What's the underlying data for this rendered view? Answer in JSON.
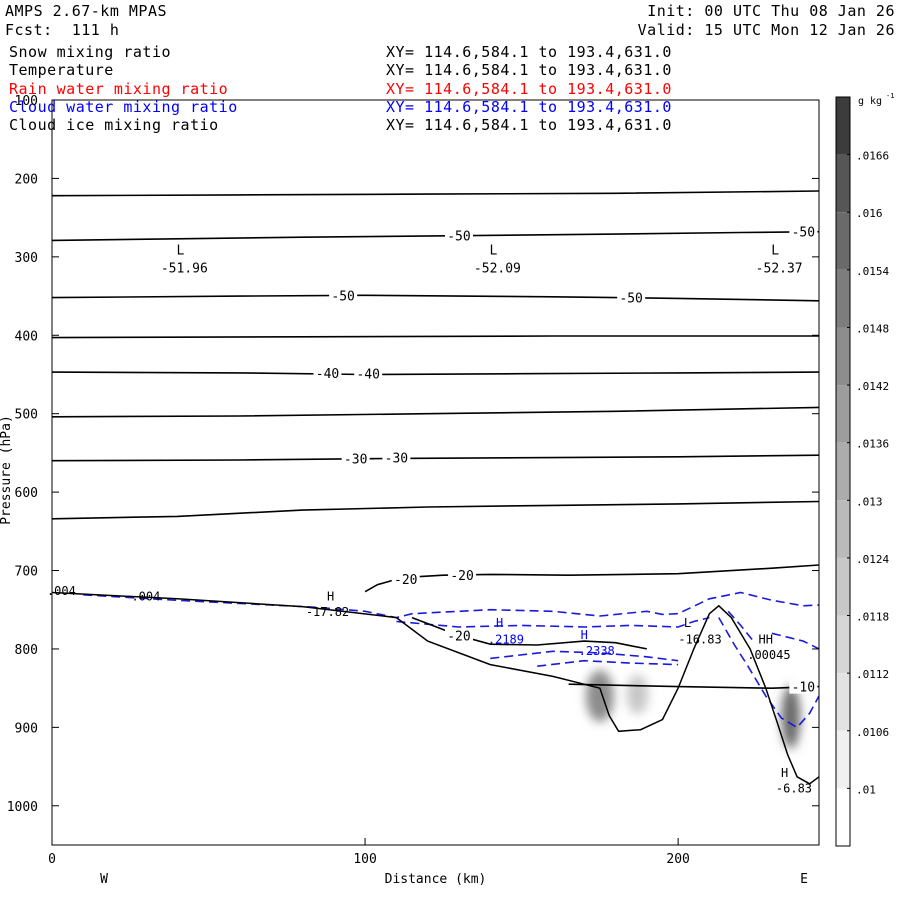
{
  "header": {
    "model": "AMPS 2.67-km MPAS",
    "forecast": "Fcst:  111 h",
    "init": "Init: 00 UTC Thu 08 Jan 26",
    "valid": "Valid: 15 UTC Mon 12 Jan 26"
  },
  "fields": [
    {
      "name": "Snow mixing ratio",
      "xy": "XY= 114.6,584.1 to 193.4,631.0",
      "color": "#000000"
    },
    {
      "name": "Temperature",
      "xy": "XY= 114.6,584.1 to 193.4,631.0",
      "color": "#000000"
    },
    {
      "name": "Rain water mixing ratio",
      "xy": "XY= 114.6,584.1 to 193.4,631.0",
      "color": "#ff0000"
    },
    {
      "name": "Cloud water mixing ratio",
      "xy": "XY= 114.6,584.1 to 193.4,631.0",
      "color": "#0000ff"
    },
    {
      "name": "Cloud ice mixing ratio",
      "xy": "XY= 114.6,584.1 to 193.4,631.0",
      "color": "#000000"
    }
  ],
  "chart_data": {
    "type": "cross-section contour",
    "xlabel": "Distance (km)",
    "ylabel": "Pressure (hPa)",
    "xlim": [
      0,
      245
    ],
    "ylim": [
      1050,
      100
    ],
    "x_ticks": [
      0,
      100,
      200
    ],
    "y_ticks": [
      100,
      200,
      300,
      400,
      500,
      600,
      700,
      800,
      900,
      1000
    ],
    "west_label": "W",
    "east_label": "E",
    "x_axis_units": "km",
    "temperature_contours": [
      {
        "label": "",
        "points": [
          [
            0,
            222
          ],
          [
            60,
            221
          ],
          [
            120,
            220
          ],
          [
            180,
            219
          ],
          [
            245,
            216
          ]
        ]
      },
      {
        "label": "-50",
        "points": [
          [
            0,
            279
          ],
          [
            40,
            277
          ],
          [
            80,
            275
          ],
          [
            130,
            273
          ],
          [
            180,
            271
          ],
          [
            220,
            269
          ],
          [
            245,
            268
          ]
        ]
      },
      {
        "label": "-50",
        "points": [
          [
            0,
            352
          ],
          [
            60,
            350
          ],
          [
            100,
            349
          ],
          [
            160,
            351
          ],
          [
            200,
            353
          ],
          [
            245,
            356
          ]
        ]
      },
      {
        "label": "",
        "points": [
          [
            0,
            403
          ],
          [
            80,
            402
          ],
          [
            160,
            401
          ],
          [
            245,
            401
          ]
        ]
      },
      {
        "label": "-40",
        "points": [
          [
            0,
            447
          ],
          [
            60,
            448
          ],
          [
            100,
            450
          ],
          [
            150,
            449
          ],
          [
            200,
            448
          ],
          [
            245,
            447
          ]
        ]
      },
      {
        "label": "",
        "points": [
          [
            0,
            504
          ],
          [
            60,
            503
          ],
          [
            120,
            500
          ],
          [
            180,
            497
          ],
          [
            245,
            492
          ]
        ]
      },
      {
        "label": "-30",
        "points": [
          [
            0,
            560
          ],
          [
            60,
            559
          ],
          [
            110,
            557
          ],
          [
            160,
            556
          ],
          [
            200,
            555
          ],
          [
            245,
            553
          ]
        ]
      },
      {
        "label": "",
        "points": [
          [
            0,
            634
          ],
          [
            40,
            631
          ],
          [
            80,
            623
          ],
          [
            120,
            619
          ],
          [
            160,
            617
          ],
          [
            200,
            615
          ],
          [
            245,
            612
          ]
        ]
      },
      {
        "label": "-20",
        "points": [
          [
            100,
            727
          ],
          [
            104,
            718
          ],
          [
            112,
            709
          ],
          [
            125,
            706
          ],
          [
            140,
            705
          ],
          [
            165,
            706
          ],
          [
            200,
            704
          ],
          [
            230,
            697
          ],
          [
            245,
            693
          ]
        ]
      },
      {
        "label": "-20",
        "points": [
          [
            115,
            760
          ],
          [
            130,
            783
          ],
          [
            140,
            794
          ],
          [
            155,
            795
          ],
          [
            170,
            790
          ],
          [
            180,
            792
          ],
          [
            190,
            800
          ]
        ]
      },
      {
        "label": "-10",
        "points": [
          [
            165,
            845
          ],
          [
            200,
            848
          ],
          [
            230,
            850
          ],
          [
            245,
            848
          ]
        ]
      }
    ],
    "terrain": [
      [
        0,
        728
      ],
      [
        40,
        736
      ],
      [
        80,
        746
      ],
      [
        110,
        760
      ],
      [
        120,
        790
      ],
      [
        140,
        820
      ],
      [
        160,
        835
      ],
      [
        175,
        850
      ],
      [
        178,
        885
      ],
      [
        181,
        905
      ],
      [
        188,
        903
      ],
      [
        195,
        890
      ],
      [
        200,
        850
      ],
      [
        205,
        800
      ],
      [
        210,
        755
      ],
      [
        213,
        745
      ],
      [
        217,
        760
      ],
      [
        223,
        800
      ],
      [
        228,
        850
      ],
      [
        232,
        898
      ],
      [
        235,
        935
      ],
      [
        238,
        963
      ],
      [
        242,
        972
      ],
      [
        245,
        963
      ]
    ],
    "cloud_water_contours": [
      {
        "points": [
          [
            10,
            731
          ],
          [
            40,
            738
          ],
          [
            70,
            744
          ],
          [
            85,
            747
          ],
          [
            100,
            752
          ],
          [
            110,
            760
          ],
          [
            115,
            755
          ],
          [
            140,
            750
          ],
          [
            160,
            752
          ],
          [
            175,
            758
          ],
          [
            190,
            752
          ],
          [
            195,
            756
          ],
          [
            200,
            755
          ],
          [
            210,
            736
          ],
          [
            220,
            728
          ],
          [
            230,
            738
          ],
          [
            240,
            745
          ],
          [
            245,
            744
          ]
        ]
      },
      {
        "points": [
          [
            110,
            765
          ],
          [
            130,
            772
          ],
          [
            150,
            770
          ],
          [
            170,
            772
          ],
          [
            185,
            770
          ],
          [
            200,
            772
          ],
          [
            205,
            765
          ],
          [
            210,
            760
          ]
        ]
      },
      {
        "points": [
          [
            140,
            812
          ],
          [
            160,
            803
          ],
          [
            175,
            805
          ],
          [
            190,
            810
          ],
          [
            200,
            815
          ]
        ]
      },
      {
        "points": [
          [
            155,
            822
          ],
          [
            170,
            815
          ],
          [
            185,
            818
          ],
          [
            200,
            820
          ]
        ]
      },
      {
        "points": [
          [
            213,
            760
          ],
          [
            218,
            795
          ],
          [
            222,
            820
          ],
          [
            228,
            860
          ],
          [
            233,
            888
          ],
          [
            238,
            900
          ],
          [
            242,
            882
          ],
          [
            245,
            860
          ]
        ]
      },
      {
        "points": [
          [
            216,
            752
          ],
          [
            220,
            770
          ],
          [
            224,
            790
          ]
        ]
      },
      {
        "points": [
          [
            230,
            780
          ],
          [
            240,
            790
          ],
          [
            245,
            800
          ]
        ]
      }
    ],
    "snow_blobs": [
      {
        "x": 175,
        "p": 860,
        "rx_km": 4.5,
        "rp": 33,
        "value": 0.0142
      },
      {
        "x": 187,
        "p": 858,
        "rx_km": 3.5,
        "rp": 25,
        "value": 0.0118
      },
      {
        "x": 236,
        "p": 887,
        "rx_km": 3.0,
        "rp": 40,
        "value": 0.0154
      }
    ],
    "low_labels": [
      {
        "x": 41,
        "p": 310,
        "letter": "L",
        "value": "-51.96"
      },
      {
        "x": 141,
        "p": 310,
        "letter": "L",
        "value": "-52.09"
      },
      {
        "x": 231,
        "p": 310,
        "letter": "L",
        "value": "-52.37"
      }
    ],
    "annotations": [
      {
        "x": 88,
        "p": 758,
        "text": "-17.82",
        "color": "#000000"
      },
      {
        "x": 89,
        "p": 738,
        "text": "H",
        "color": "#000000"
      },
      {
        "x": 143,
        "p": 772,
        "text": "H",
        "color": "#0000ff"
      },
      {
        "x": 145,
        "p": 793,
        "text": ".2189",
        "color": "#0000ff"
      },
      {
        "x": 170,
        "p": 787,
        "text": "H",
        "color": "#0000ff"
      },
      {
        "x": 174,
        "p": 808,
        "text": ".2338",
        "color": "#0000ff"
      },
      {
        "x": 203,
        "p": 772,
        "text": "L",
        "color": "#000000"
      },
      {
        "x": 207,
        "p": 793,
        "text": "-16.83",
        "color": "#000000"
      },
      {
        "x": 228,
        "p": 793,
        "text": "HH",
        "color": "#000000"
      },
      {
        "x": 229,
        "p": 813,
        "text": ".00045",
        "color": "#000000"
      },
      {
        "x": 234,
        "p": 963,
        "text": "H",
        "color": "#000000"
      },
      {
        "x": 237,
        "p": 983,
        "text": "-6.83",
        "color": "#000000"
      },
      {
        "x": 3,
        "p": 731,
        "text": ".004",
        "color": "#000000"
      },
      {
        "x": 30,
        "p": 738,
        "text": ".004",
        "color": "#000000"
      }
    ],
    "colorbar": {
      "units": "g kg",
      "units_exponent": "-1",
      "levels": [
        ".01",
        ".0106",
        ".0112",
        ".0118",
        ".0124",
        ".013",
        ".0136",
        ".0142",
        ".0148",
        ".0154",
        ".016",
        ".0166"
      ],
      "colors": [
        "#ffffff",
        "#f0f0f0",
        "#e3e3e3",
        "#d6d6d6",
        "#c8c8c8",
        "#bababa",
        "#acacac",
        "#9d9d9d",
        "#8d8d8d",
        "#7d7d7d",
        "#6a6a6a",
        "#565656",
        "#3c3c3c"
      ]
    }
  }
}
